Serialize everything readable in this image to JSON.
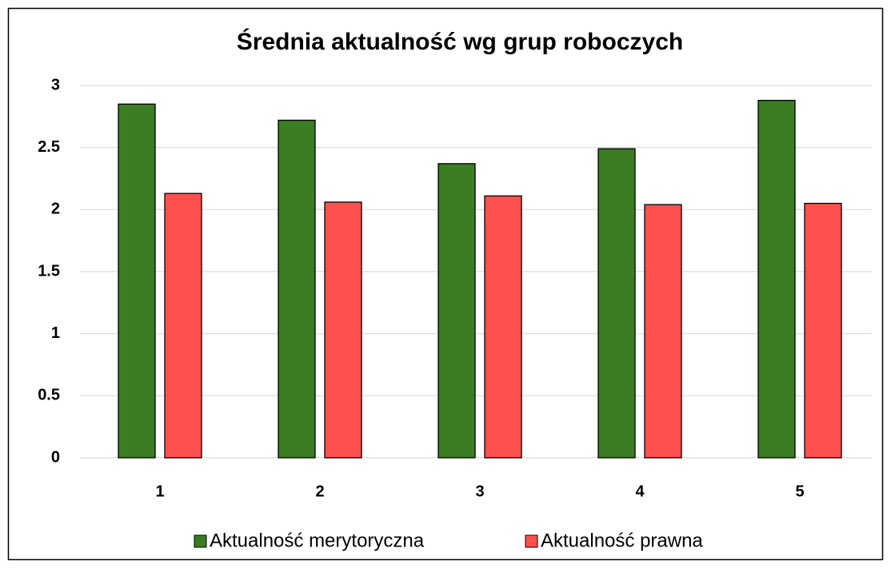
{
  "chart_data": {
    "type": "bar",
    "title": "Średnia aktualność wg grup roboczych",
    "categories": [
      "1",
      "2",
      "3",
      "4",
      "5"
    ],
    "series": [
      {
        "name": "Aktualność merytoryczna",
        "color": "#3a7d22",
        "values": [
          2.85,
          2.72,
          2.37,
          2.49,
          2.88
        ]
      },
      {
        "name": "Aktualność prawna",
        "color": "#ff5050",
        "values": [
          2.13,
          2.06,
          2.11,
          2.04,
          2.05
        ]
      }
    ],
    "ylim": [
      0,
      3
    ],
    "yticks": [
      0,
      0.5,
      1,
      1.5,
      2,
      2.5,
      3
    ],
    "grid": true,
    "legend": "bottom"
  }
}
